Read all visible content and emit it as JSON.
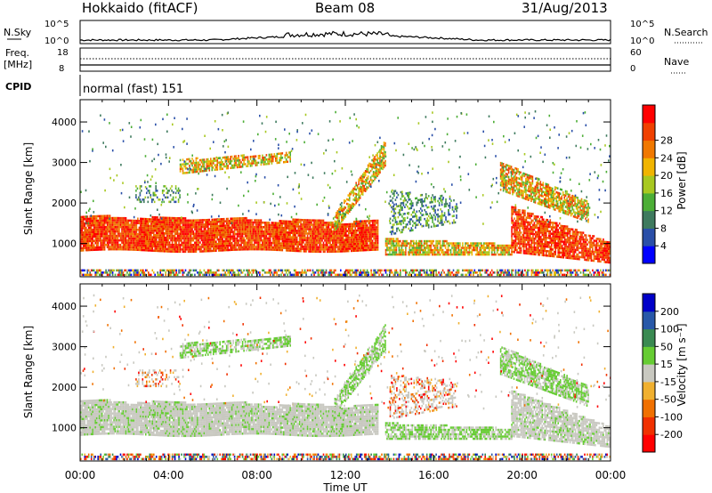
{
  "header": {
    "station": "Hokkaido (fitACF)",
    "beam": "Beam 08",
    "date": "31/Aug/2013"
  },
  "top_panel": {
    "left_label": "N.Sky",
    "right_label": "N.Search",
    "left_ticks": [
      "10^5",
      "10^0"
    ],
    "right_ticks": [
      "10^5",
      "10^0"
    ]
  },
  "freq_panel": {
    "left_label": "Freq.",
    "left_unit": "[MHz]",
    "right_label": "Nave",
    "left_ticks": [
      "18",
      "8"
    ],
    "right_ticks": [
      "60",
      "0"
    ]
  },
  "cpid": {
    "label": "CPID",
    "value": "normal (fast) 151"
  },
  "chart_data": [
    {
      "type": "heatmap",
      "quantity": "Power",
      "ylabel": "Slant Range [km]",
      "xlabel": "Time UT",
      "x_ticks": [
        "00:00",
        "04:00",
        "08:00",
        "12:00",
        "16:00",
        "20:00",
        "00:00"
      ],
      "y_ticks": [
        1000,
        2000,
        3000,
        4000
      ],
      "ylim": [
        180,
        4550
      ],
      "xlim_hours": [
        0,
        24
      ],
      "colorbar": {
        "label": "Power [dB]",
        "ticks": [
          "4",
          "8",
          "12",
          "16",
          "20",
          "24",
          "28"
        ],
        "colors": [
          "#0000ff",
          "#2a4fa8",
          "#3e7a5e",
          "#4cae36",
          "#a8c820",
          "#f0b400",
          "#f07800",
          "#f04000",
          "#ff0000"
        ]
      }
    },
    {
      "type": "heatmap",
      "quantity": "Velocity",
      "ylabel": "Slant Range [km]",
      "xlabel": "Time UT",
      "x_ticks": [
        "00:00",
        "04:00",
        "08:00",
        "12:00",
        "16:00",
        "20:00",
        "00:00"
      ],
      "y_ticks": [
        1000,
        2000,
        3000,
        4000
      ],
      "ylim": [
        180,
        4550
      ],
      "xlim_hours": [
        0,
        24
      ],
      "colorbar": {
        "label": "Velocity [m s⁻¹]",
        "ticks": [
          "200",
          "100",
          "50",
          "15",
          "-15",
          "-50",
          "-100",
          "-200"
        ],
        "colors": [
          "#0000c8",
          "#2858a8",
          "#3a8a52",
          "#66cc33",
          "#c8c8c0",
          "#f0b030",
          "#f07000",
          "#f03000",
          "#ff0000"
        ]
      }
    }
  ],
  "axis": {
    "xlabel": "Time UT"
  }
}
